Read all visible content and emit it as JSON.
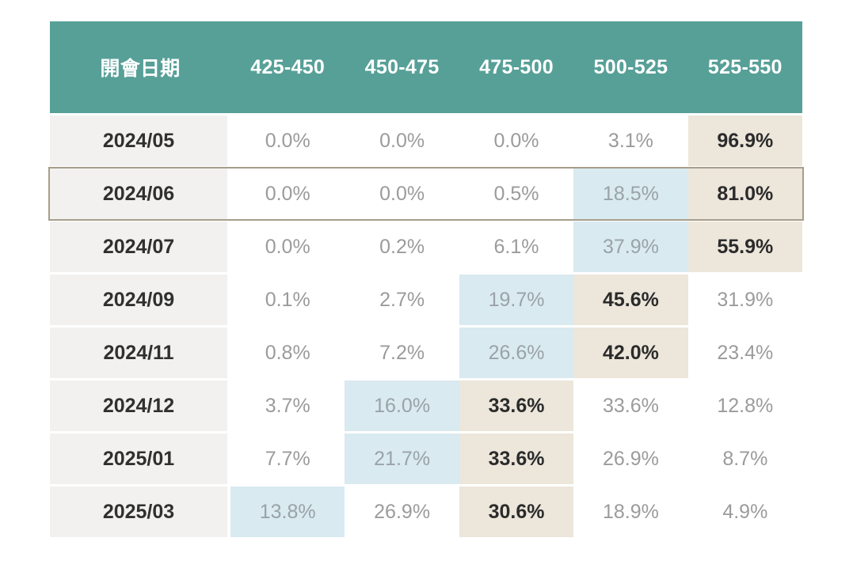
{
  "colors": {
    "header_teal": "#57a098",
    "datecol_bg": "#f2f1f0",
    "blue_highlight": "#d9eaf0",
    "beige_highlight": "#ece6db",
    "value_gray": "#9b9b9b",
    "blue_text": "#99a3a8",
    "bold_text": "#2b2b2b",
    "date_text": "#303030",
    "outline_tan": "#a69e8b"
  },
  "table": {
    "header": {
      "date_label": "開會日期",
      "range_labels": [
        "425-450",
        "450-475",
        "475-500",
        "500-525",
        "525-550"
      ]
    },
    "rows": [
      {
        "date": "2024/05",
        "values": [
          "0.0%",
          "0.0%",
          "0.0%",
          "3.1%",
          "96.9%"
        ],
        "highlight_blue_col": null,
        "highlight_beige_col": 4,
        "outlined": false
      },
      {
        "date": "2024/06",
        "values": [
          "0.0%",
          "0.0%",
          "0.5%",
          "18.5%",
          "81.0%"
        ],
        "highlight_blue_col": 3,
        "highlight_beige_col": 4,
        "outlined": true
      },
      {
        "date": "2024/07",
        "values": [
          "0.0%",
          "0.2%",
          "6.1%",
          "37.9%",
          "55.9%"
        ],
        "highlight_blue_col": 3,
        "highlight_beige_col": 4,
        "outlined": false
      },
      {
        "date": "2024/09",
        "values": [
          "0.1%",
          "2.7%",
          "19.7%",
          "45.6%",
          "31.9%"
        ],
        "highlight_blue_col": 2,
        "highlight_beige_col": 3,
        "outlined": false
      },
      {
        "date": "2024/11",
        "values": [
          "0.8%",
          "7.2%",
          "26.6%",
          "42.0%",
          "23.4%"
        ],
        "highlight_blue_col": 2,
        "highlight_beige_col": 3,
        "outlined": false
      },
      {
        "date": "2024/12",
        "values": [
          "3.7%",
          "16.0%",
          "33.6%",
          "33.6%",
          "12.8%"
        ],
        "highlight_blue_col": 1,
        "highlight_beige_col": 2,
        "outlined": false
      },
      {
        "date": "2025/01",
        "values": [
          "7.7%",
          "21.7%",
          "33.6%",
          "26.9%",
          "8.7%"
        ],
        "highlight_blue_col": 1,
        "highlight_beige_col": 2,
        "outlined": false
      },
      {
        "date": "2025/03",
        "values": [
          "13.8%",
          "26.9%",
          "30.6%",
          "18.9%",
          "4.9%"
        ],
        "highlight_blue_col": 0,
        "highlight_beige_col": 2,
        "outlined": false
      }
    ]
  },
  "chart_data": {
    "type": "table",
    "title": "",
    "columns": [
      "開會日期",
      "425-450",
      "450-475",
      "475-500",
      "500-525",
      "525-550"
    ],
    "unit": "%",
    "rows": [
      {
        "meeting_date": "2024/05",
        "probabilities": [
          0.0,
          0.0,
          0.0,
          3.1,
          96.9
        ]
      },
      {
        "meeting_date": "2024/06",
        "probabilities": [
          0.0,
          0.0,
          0.5,
          18.5,
          81.0
        ]
      },
      {
        "meeting_date": "2024/07",
        "probabilities": [
          0.0,
          0.2,
          6.1,
          37.9,
          55.9
        ]
      },
      {
        "meeting_date": "2024/09",
        "probabilities": [
          0.1,
          2.7,
          19.7,
          45.6,
          31.9
        ]
      },
      {
        "meeting_date": "2024/11",
        "probabilities": [
          0.8,
          7.2,
          26.6,
          42.0,
          23.4
        ]
      },
      {
        "meeting_date": "2024/12",
        "probabilities": [
          3.7,
          16.0,
          33.6,
          33.6,
          12.8
        ]
      },
      {
        "meeting_date": "2025/01",
        "probabilities": [
          7.7,
          21.7,
          33.6,
          26.9,
          8.7
        ]
      },
      {
        "meeting_date": "2025/03",
        "probabilities": [
          13.8,
          26.9,
          30.6,
          18.9,
          4.9
        ]
      }
    ],
    "legend": {
      "beige_highlight_meaning": "highest probability in row (bold)",
      "blue_highlight_meaning": "secondary highlighted probability",
      "outlined_row": "2024/06"
    }
  }
}
